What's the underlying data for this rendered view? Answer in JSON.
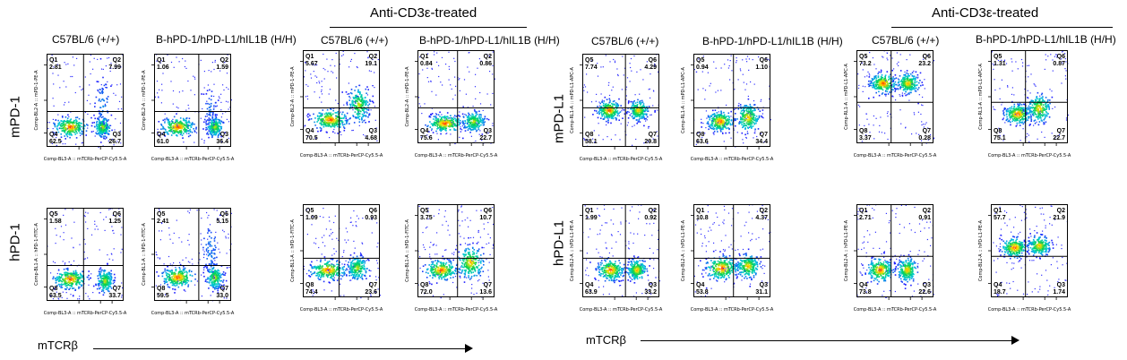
{
  "treated_header": "Anti-CD3ε-treated",
  "col_labels": {
    "c57": "C57BL/6 (+/+)",
    "humanized": "B-hPD-1/hPD-L1/hIL1B (H/H)"
  },
  "row_labels": {
    "mpd1": "mPD-1",
    "hpd1": "hPD-1",
    "mpdl1": "mPD-L1",
    "hpdl1": "hPD-L1"
  },
  "x_axis_title": "mTCRβ",
  "x_axis_label_text": "Comp-BL3-A :: mTCRb-PerCP-Cy5.5-A",
  "colors": {
    "low": "#1a1aff",
    "mid": "#00d060",
    "high": "#ffe000",
    "peak": "#ff2000",
    "gate": "#000000"
  },
  "chart_data": [
    {
      "type": "scatter",
      "group": "PD-1",
      "row": "mPD-1",
      "column": "C57BL/6 (+/+)",
      "treated": false,
      "ylabel": "Comp-BL2-A :: mPD-1-PE-A",
      "quadrants": [
        {
          "name": "Q1",
          "value": "2.81"
        },
        {
          "name": "Q2",
          "value": "7.99"
        },
        {
          "name": "Q3",
          "value": "26.7"
        },
        {
          "name": "Q4",
          "value": "62.5"
        }
      ]
    },
    {
      "type": "scatter",
      "group": "PD-1",
      "row": "mPD-1",
      "column": "B-hPD-1/hPD-L1/hIL1B (H/H)",
      "treated": false,
      "ylabel": "Comp-BL2-A :: mPD-1-PE-A",
      "quadrants": [
        {
          "name": "Q1",
          "value": "1.06"
        },
        {
          "name": "Q2",
          "value": "1.59"
        },
        {
          "name": "Q3",
          "value": "36.4"
        },
        {
          "name": "Q4",
          "value": "61.0"
        }
      ]
    },
    {
      "type": "scatter",
      "group": "PD-1",
      "row": "mPD-1",
      "column": "C57BL/6 (+/+)",
      "treated": true,
      "ylabel": "Comp-BL2-A :: mPD-1-PE-A",
      "quadrants": [
        {
          "name": "Q1",
          "value": "5.67"
        },
        {
          "name": "Q2",
          "value": "19.1"
        },
        {
          "name": "Q3",
          "value": "4.68"
        },
        {
          "name": "Q4",
          "value": "70.5"
        }
      ]
    },
    {
      "type": "scatter",
      "group": "PD-1",
      "row": "mPD-1",
      "column": "B-hPD-1/hPD-L1/hIL1B (H/H)",
      "treated": true,
      "ylabel": "Comp-BL2-A :: mPD-1-PE-A",
      "quadrants": [
        {
          "name": "Q1",
          "value": "0.84"
        },
        {
          "name": "Q2",
          "value": "0.86"
        },
        {
          "name": "Q3",
          "value": "22.7"
        },
        {
          "name": "Q4",
          "value": "75.6"
        }
      ]
    },
    {
      "type": "scatter",
      "group": "PD-1",
      "row": "hPD-1",
      "column": "C57BL/6 (+/+)",
      "treated": false,
      "ylabel": "Comp-BL1-A :: hPD-1-FITC-A",
      "quadrants": [
        {
          "name": "Q5",
          "value": "1.58"
        },
        {
          "name": "Q6",
          "value": "1.25"
        },
        {
          "name": "Q7",
          "value": "33.7"
        },
        {
          "name": "Q8",
          "value": "63.5"
        }
      ]
    },
    {
      "type": "scatter",
      "group": "PD-1",
      "row": "hPD-1",
      "column": "B-hPD-1/hPD-L1/hIL1B (H/H)",
      "treated": false,
      "ylabel": "Comp-BL1-A :: hPD-1-FITC-A",
      "quadrants": [
        {
          "name": "Q5",
          "value": "2.41"
        },
        {
          "name": "Q6",
          "value": "5.15"
        },
        {
          "name": "Q7",
          "value": "33.0"
        },
        {
          "name": "Q8",
          "value": "59.5"
        }
      ]
    },
    {
      "type": "scatter",
      "group": "PD-1",
      "row": "hPD-1",
      "column": "C57BL/6 (+/+)",
      "treated": true,
      "ylabel": "Comp-BL1-A :: hPD-1-FITC-A",
      "quadrants": [
        {
          "name": "Q5",
          "value": "1.09"
        },
        {
          "name": "Q6",
          "value": "0.93"
        },
        {
          "name": "Q7",
          "value": "23.6"
        },
        {
          "name": "Q8",
          "value": "74.4"
        }
      ]
    },
    {
      "type": "scatter",
      "group": "PD-1",
      "row": "hPD-1",
      "column": "B-hPD-1/hPD-L1/hIL1B (H/H)",
      "treated": true,
      "ylabel": "Comp-BL1-A :: hPD-1-FITC-A",
      "quadrants": [
        {
          "name": "Q5",
          "value": "3.75"
        },
        {
          "name": "Q6",
          "value": "10.7"
        },
        {
          "name": "Q7",
          "value": "13.6"
        },
        {
          "name": "Q8",
          "value": "72.0"
        }
      ]
    },
    {
      "type": "scatter",
      "group": "PD-L1",
      "row": "mPD-L1",
      "column": "C57BL/6 (+/+)",
      "treated": false,
      "ylabel": "Comp-RL1-A :: mPD-L1-APC-A",
      "quadrants": [
        {
          "name": "Q5",
          "value": "7.74"
        },
        {
          "name": "Q6",
          "value": "4.29"
        },
        {
          "name": "Q7",
          "value": "29.8"
        },
        {
          "name": "Q8",
          "value": "58.1"
        }
      ]
    },
    {
      "type": "scatter",
      "group": "PD-L1",
      "row": "mPD-L1",
      "column": "B-hPD-1/hPD-L1/hIL1B (H/H)",
      "treated": false,
      "ylabel": "Comp-RL1-A :: mPD-L1-APC-A",
      "quadrants": [
        {
          "name": "Q5",
          "value": "0.94"
        },
        {
          "name": "Q6",
          "value": "1.10"
        },
        {
          "name": "Q7",
          "value": "34.4"
        },
        {
          "name": "Q8",
          "value": "63.6"
        }
      ]
    },
    {
      "type": "scatter",
      "group": "PD-L1",
      "row": "mPD-L1",
      "column": "C57BL/6 (+/+)",
      "treated": true,
      "ylabel": "Comp-RL1-A :: mPD-L1-APC-A",
      "quadrants": [
        {
          "name": "Q5",
          "value": "73.2"
        },
        {
          "name": "Q6",
          "value": "23.2"
        },
        {
          "name": "Q7",
          "value": "0.28"
        },
        {
          "name": "Q8",
          "value": "3.37"
        }
      ]
    },
    {
      "type": "scatter",
      "group": "PD-L1",
      "row": "mPD-L1",
      "column": "B-hPD-1/hPD-L1/hIL1B (H/H)",
      "treated": true,
      "ylabel": "Comp-RL1-A :: mPD-L1-APC-A",
      "quadrants": [
        {
          "name": "Q5",
          "value": "1.31"
        },
        {
          "name": "Q6",
          "value": "0.87"
        },
        {
          "name": "Q7",
          "value": "22.7"
        },
        {
          "name": "Q8",
          "value": "75.1"
        }
      ]
    },
    {
      "type": "scatter",
      "group": "PD-L1",
      "row": "hPD-L1",
      "column": "C57BL/6 (+/+)",
      "treated": false,
      "ylabel": "Comp-BL2-A :: hPD-L1-PE-A",
      "quadrants": [
        {
          "name": "Q1",
          "value": "1.99"
        },
        {
          "name": "Q2",
          "value": "0.92"
        },
        {
          "name": "Q3",
          "value": "33.2"
        },
        {
          "name": "Q4",
          "value": "63.9"
        }
      ]
    },
    {
      "type": "scatter",
      "group": "PD-L1",
      "row": "hPD-L1",
      "column": "B-hPD-1/hPD-L1/hIL1B (H/H)",
      "treated": false,
      "ylabel": "Comp-BL2-A :: hPD-L1-PE-A",
      "quadrants": [
        {
          "name": "Q1",
          "value": "10.8"
        },
        {
          "name": "Q2",
          "value": "4.37"
        },
        {
          "name": "Q3",
          "value": "31.1"
        },
        {
          "name": "Q4",
          "value": "53.8"
        }
      ]
    },
    {
      "type": "scatter",
      "group": "PD-L1",
      "row": "hPD-L1",
      "column": "C57BL/6 (+/+)",
      "treated": true,
      "ylabel": "Comp-BL2-A :: hPD-L1-PE-A",
      "quadrants": [
        {
          "name": "Q1",
          "value": "2.71"
        },
        {
          "name": "Q2",
          "value": "0.91"
        },
        {
          "name": "Q3",
          "value": "22.6"
        },
        {
          "name": "Q4",
          "value": "73.8"
        }
      ]
    },
    {
      "type": "scatter",
      "group": "PD-L1",
      "row": "hPD-L1",
      "column": "B-hPD-1/hPD-L1/hIL1B (H/H)",
      "treated": true,
      "ylabel": "Comp-BL2-A :: hPD-L1-PE-A",
      "quadrants": [
        {
          "name": "Q1",
          "value": "57.7"
        },
        {
          "name": "Q2",
          "value": "21.9"
        },
        {
          "name": "Q3",
          "value": "1.74"
        },
        {
          "name": "Q4",
          "value": "18.7"
        }
      ]
    }
  ]
}
